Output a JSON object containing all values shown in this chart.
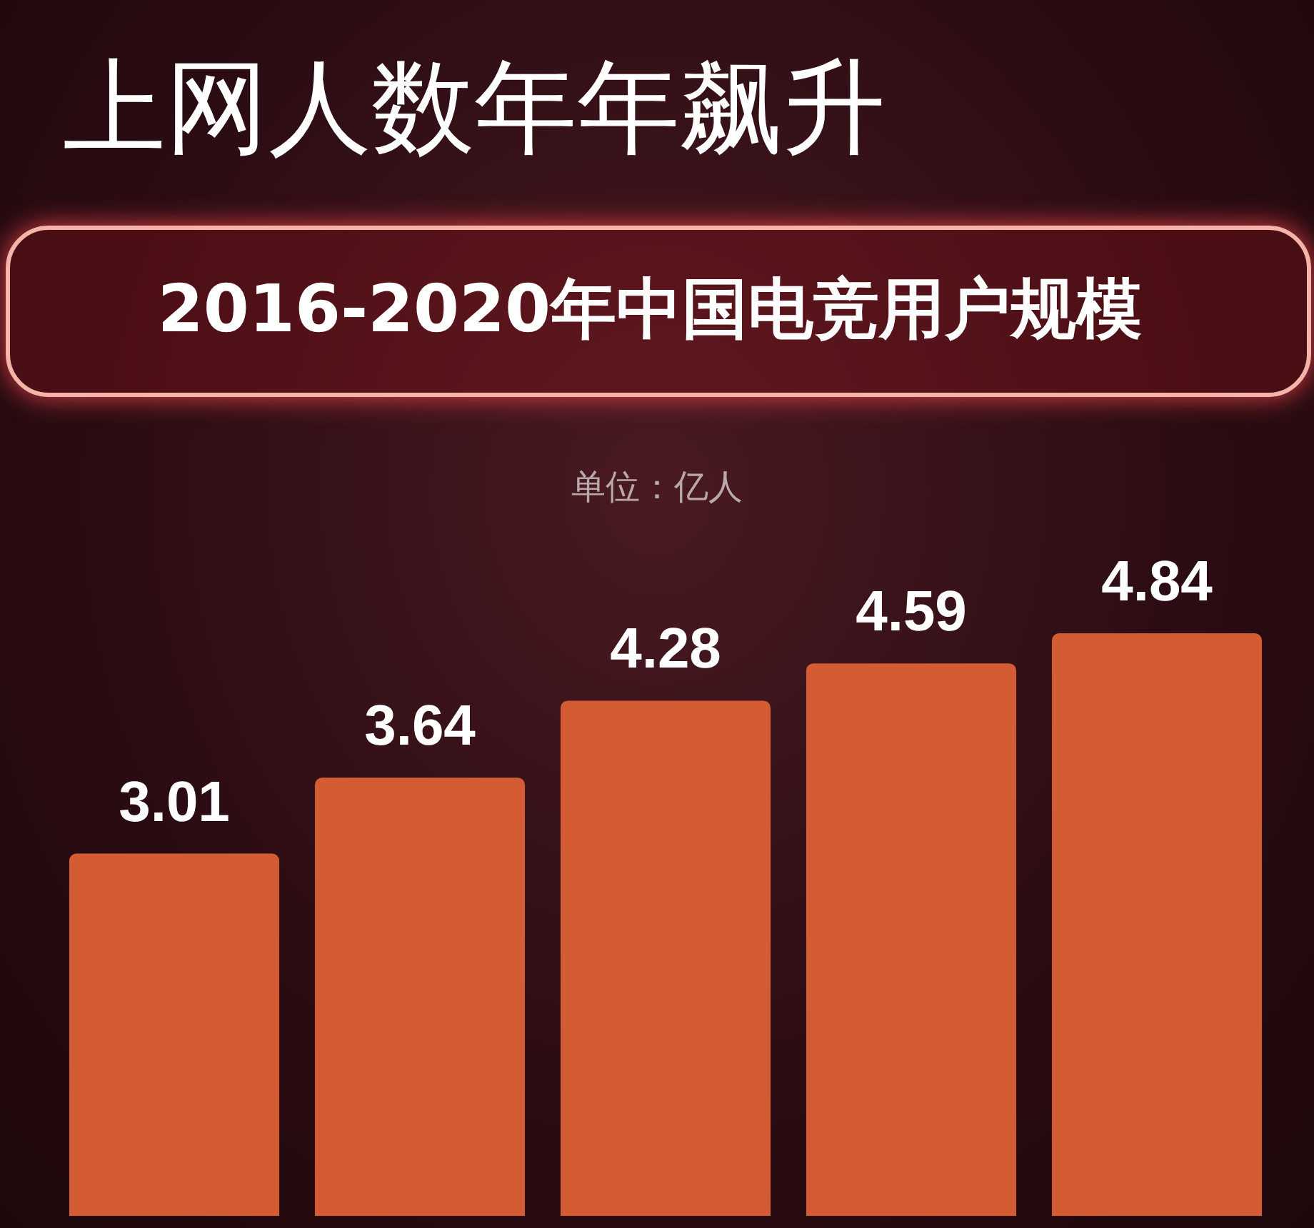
{
  "chart_data": {
    "type": "bar",
    "title": "上网人数年年飙升",
    "subtitle": "2016-2020年中国电竞用户规模",
    "annotations": [
      "单位：亿人"
    ],
    "categories": [
      null,
      null,
      null,
      null,
      null
    ],
    "values": [
      3.01,
      3.64,
      4.28,
      4.59,
      4.84
    ],
    "color": "#d45c32",
    "data_labels": true,
    "relative": false,
    "legend": false,
    "grid": false
  }
}
